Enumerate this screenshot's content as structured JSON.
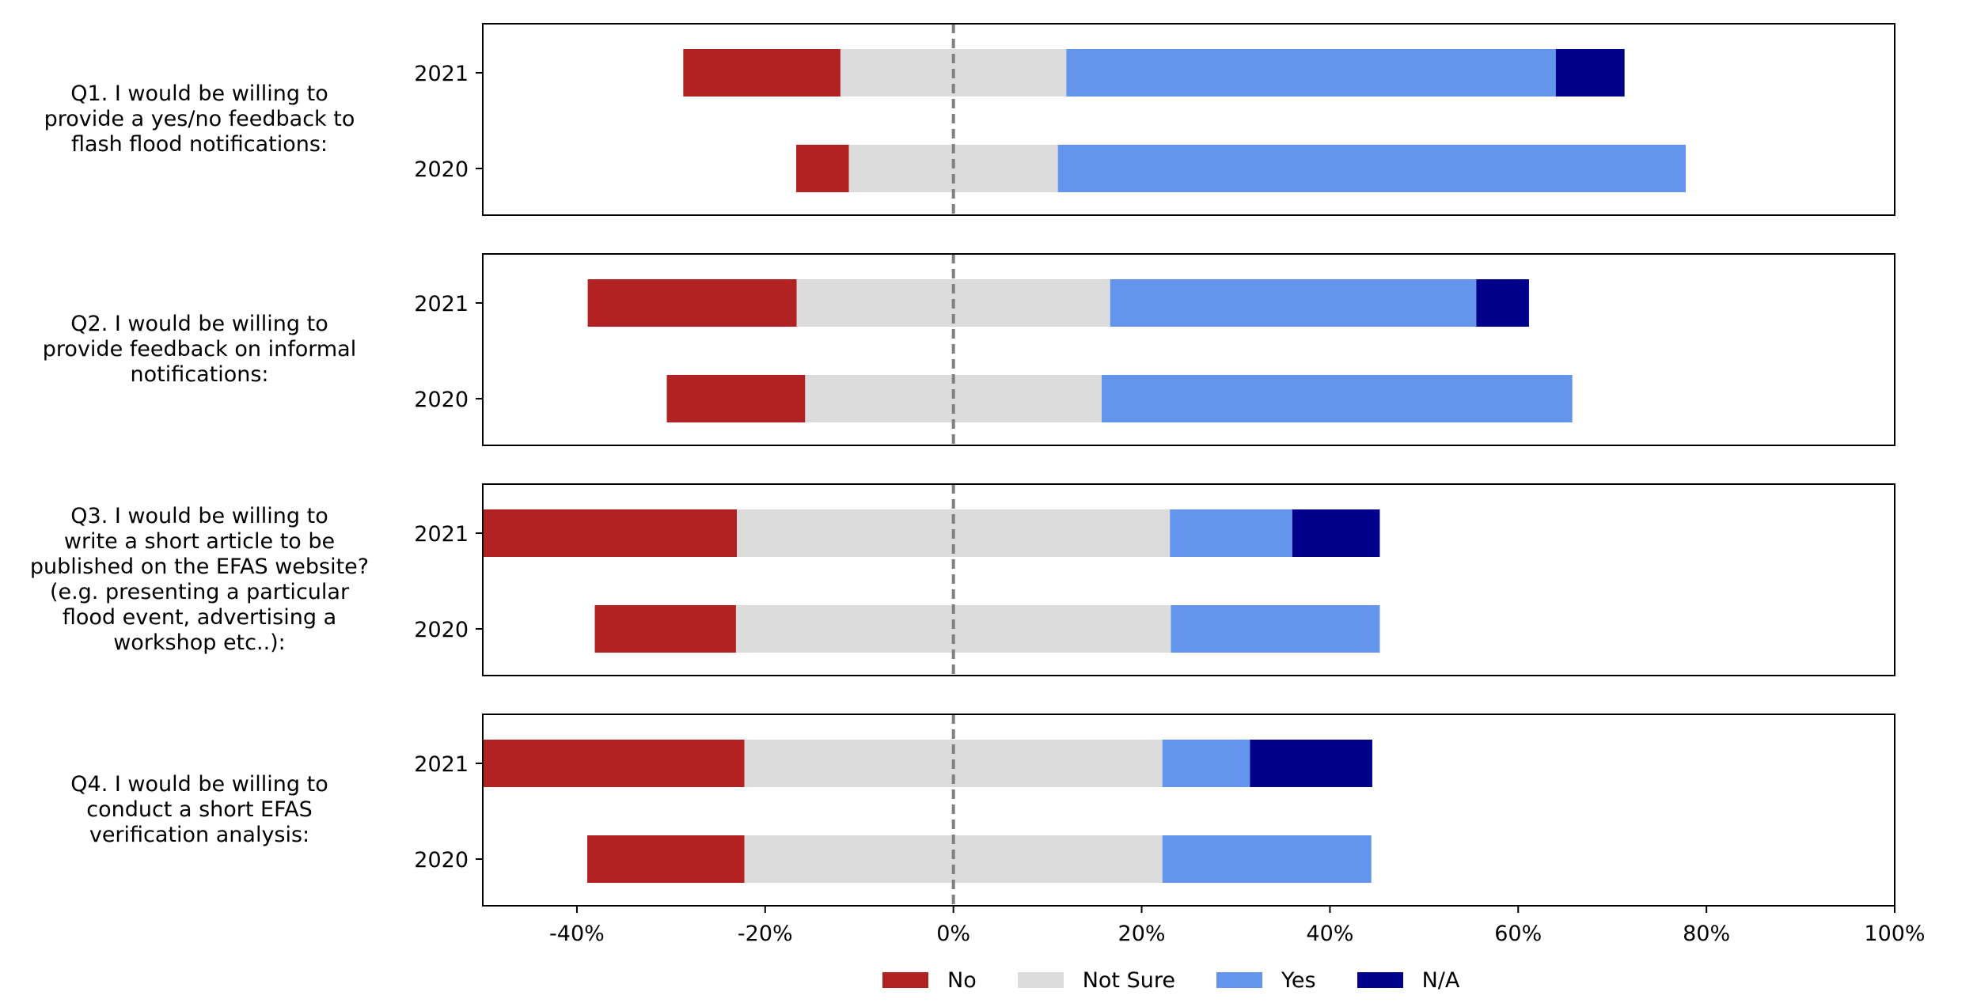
{
  "chart_data": {
    "type": "bar",
    "orientation": "horizontal",
    "stacked": true,
    "diverging": true,
    "xlim": [
      -50,
      100
    ],
    "xticks": [
      "-40%",
      "-20%",
      "0%",
      "20%",
      "40%",
      "60%",
      "80%",
      "100%"
    ],
    "xtick_values": [
      -40,
      -20,
      0,
      20,
      40,
      60,
      80,
      100
    ],
    "series": [
      {
        "name": "No",
        "color": "#b22222"
      },
      {
        "name": "Not Sure",
        "color": "#dcdcdc"
      },
      {
        "name": "Yes",
        "color": "#6495ed"
      },
      {
        "name": "N/A",
        "color": "#00008b"
      }
    ],
    "panels": [
      {
        "question": [
          "Q1. I would be willing to",
          "provide a yes/no feedback to",
          "flash flood notifications:"
        ],
        "rows": [
          {
            "year": "2021",
            "no": 16.7,
            "not_sure": 24.0,
            "yes": 52.0,
            "na": 7.3
          },
          {
            "year": "2020",
            "no": 5.6,
            "not_sure": 22.2,
            "yes": 66.7,
            "na": 0
          }
        ]
      },
      {
        "question": [
          "Q2. I would be willing to",
          "provide feedback on informal",
          "notifications:"
        ],
        "rows": [
          {
            "year": "2021",
            "no": 22.2,
            "not_sure": 33.3,
            "yes": 38.9,
            "na": 5.6
          },
          {
            "year": "2020",
            "no": 14.7,
            "not_sure": 31.5,
            "yes": 50.0,
            "na": 0
          }
        ]
      },
      {
        "question": [
          "Q3. I would be willing to",
          "write a short article to be",
          "published on the EFAS website?",
          "(e.g. presenting a particular",
          "flood event, advertising a",
          "workshop etc..):"
        ],
        "rows": [
          {
            "year": "2021",
            "no": 27.0,
            "not_sure": 46.0,
            "yes": 13.0,
            "na": 9.3
          },
          {
            "year": "2020",
            "no": 15.0,
            "not_sure": 46.2,
            "yes": 22.2,
            "na": 0
          }
        ]
      },
      {
        "question": [
          "Q4. I would be willing to",
          "conduct a short EFAS",
          "verification analysis:"
        ],
        "rows": [
          {
            "year": "2021",
            "no": 27.8,
            "not_sure": 44.4,
            "yes": 9.3,
            "na": 13.0
          },
          {
            "year": "2020",
            "no": 16.7,
            "not_sure": 44.4,
            "yes": 22.2,
            "na": 0
          }
        ]
      }
    ]
  }
}
